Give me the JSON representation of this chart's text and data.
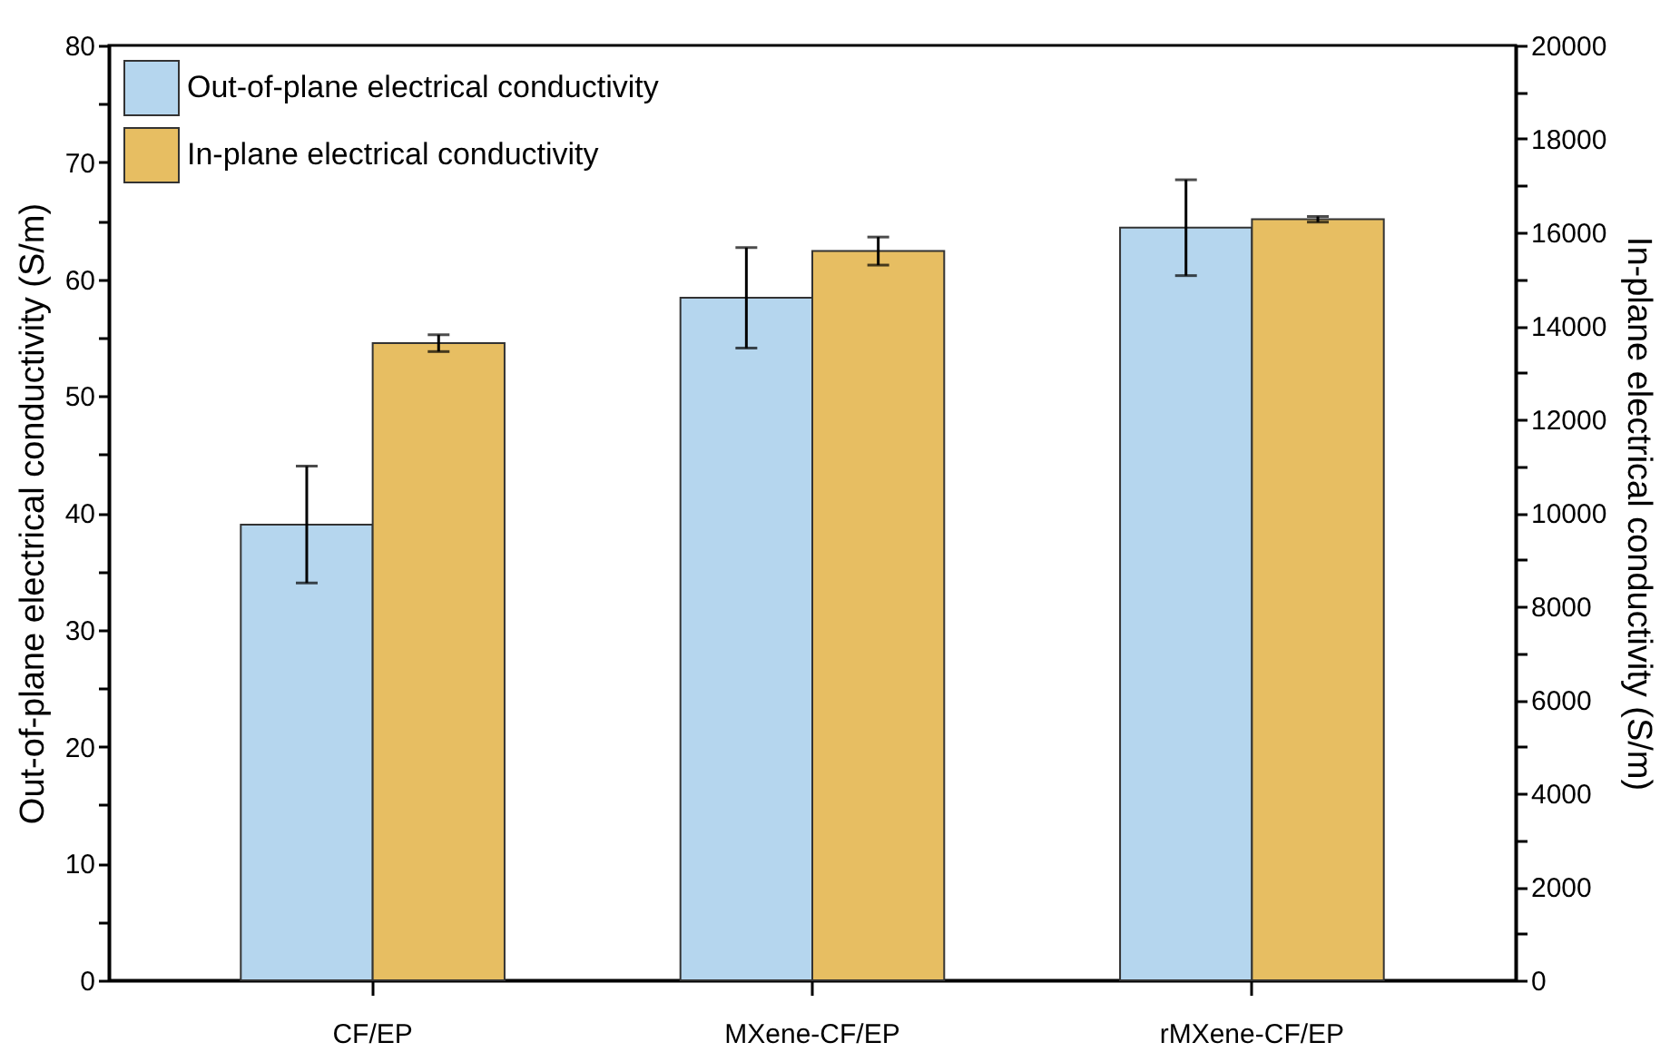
{
  "chart_data": {
    "type": "bar",
    "categories": [
      "CF/EP",
      "MXene-CF/EP",
      "rMXene-CF/EP"
    ],
    "series": [
      {
        "name": "Out-of-plane electrical conductivity",
        "color": "#b5d6ee",
        "values": [
          39,
          58.4,
          64.4
        ],
        "errors": [
          5,
          4.3,
          4.1
        ]
      },
      {
        "name": "In-plane electrical conductivity",
        "color": "#e7be62",
        "axis": "y2",
        "values": [
          13630,
          15600,
          16280
        ],
        "errors": [
          180,
          300,
          60
        ]
      }
    ],
    "ylabel": "Out-of-plane electrical conductivity (S/m)",
    "y2label": "In-plane electrical conductivity (S/m)",
    "ylim": [
      0,
      80
    ],
    "yticks": [
      0,
      {
        "value": 5,
        "label": null
      },
      10,
      {
        "value": 15,
        "label": null
      },
      20,
      {
        "value": 25,
        "label": null
      },
      30,
      {
        "value": 35,
        "label": null
      },
      40,
      {
        "value": 45,
        "label": null
      },
      50,
      {
        "value": 55,
        "label": null
      },
      60,
      {
        "value": 65,
        "label": null
      },
      70,
      {
        "value": 75,
        "label": null
      },
      80
    ],
    "y2lim": [
      0,
      20000
    ],
    "y2ticks": [
      0,
      {
        "value": 1000,
        "label": null
      },
      2000,
      {
        "value": 3000,
        "label": null
      },
      4000,
      {
        "value": 5000,
        "label": null
      },
      6000,
      {
        "value": 7000,
        "label": null
      },
      8000,
      {
        "value": 9000,
        "label": null
      },
      10000,
      {
        "value": 11000,
        "label": null
      },
      12000,
      {
        "value": 13000,
        "label": null
      },
      14000,
      {
        "value": 15000,
        "label": null
      },
      16000,
      {
        "value": 17000,
        "label": null
      },
      18000,
      {
        "value": 19000,
        "label": null
      },
      20000
    ],
    "legend": "top left",
    "grid": false
  }
}
